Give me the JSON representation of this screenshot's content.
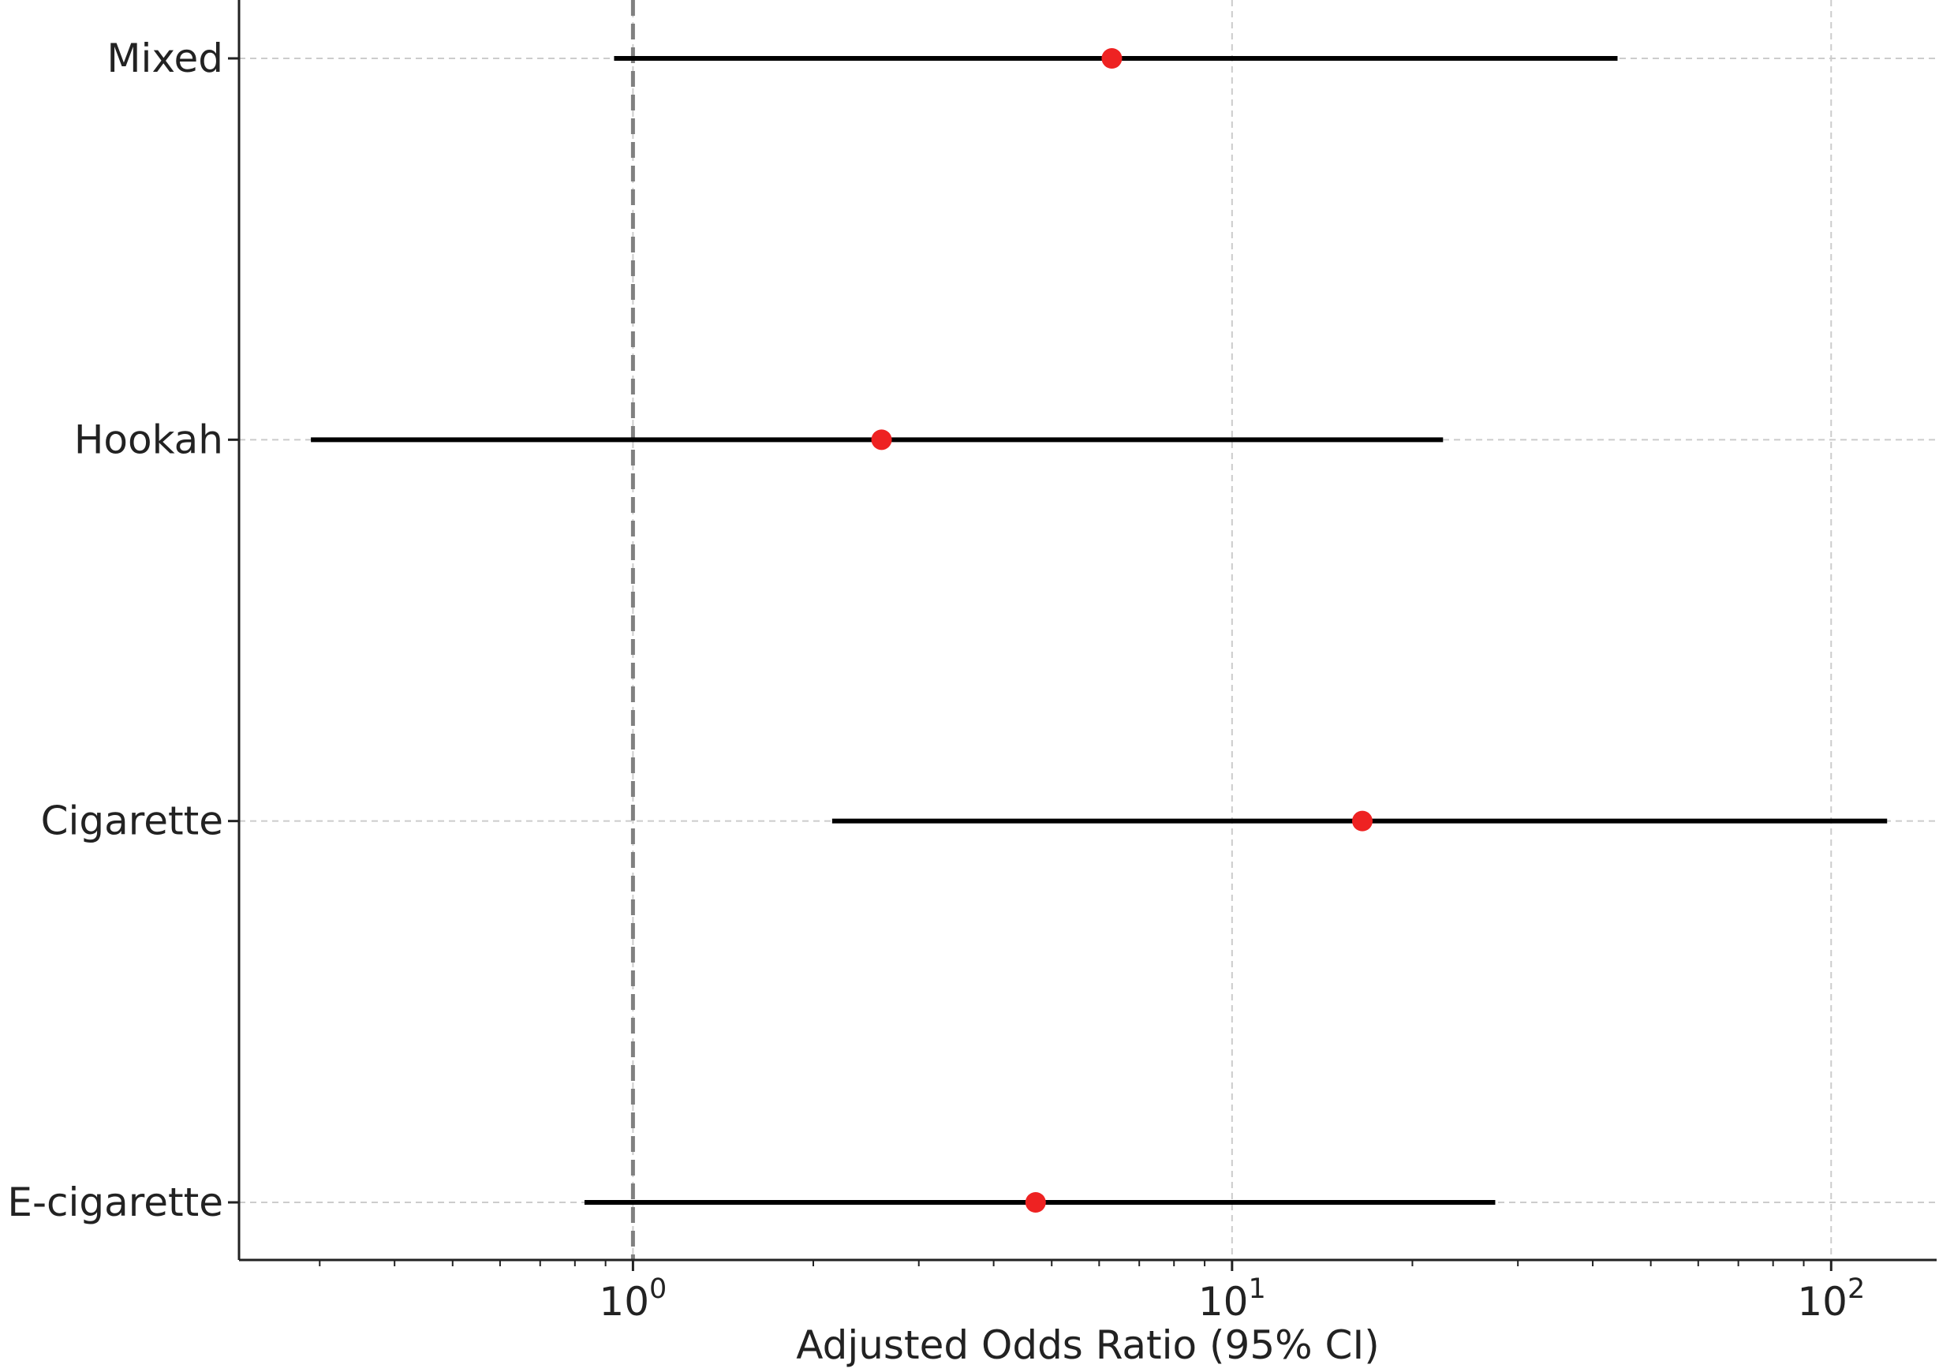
{
  "chart_data": {
    "type": "forest",
    "xlabel": "Adjusted Odds Ratio (95% CI)",
    "xscale": "log",
    "xlim": [
      0.22,
      150
    ],
    "reference_line": 1,
    "grid": true,
    "categories": [
      "Mixed",
      "Hookah",
      "Cigarette",
      "E-cigarette"
    ],
    "estimates": [
      6.3,
      2.6,
      16.5,
      4.7
    ],
    "ci_lower": [
      0.93,
      0.29,
      2.15,
      0.83
    ],
    "ci_upper": [
      44,
      22.5,
      124,
      27.5
    ],
    "xticks": [
      {
        "value": 1,
        "base": "10",
        "exp": "0"
      },
      {
        "value": 10,
        "base": "10",
        "exp": "1"
      },
      {
        "value": 100,
        "base": "10",
        "exp": "2"
      }
    ],
    "colors": {
      "point": "#ee2222",
      "ci": "#000000",
      "reference": "#808080",
      "grid": "#cccccc",
      "axis": "#222222"
    }
  }
}
